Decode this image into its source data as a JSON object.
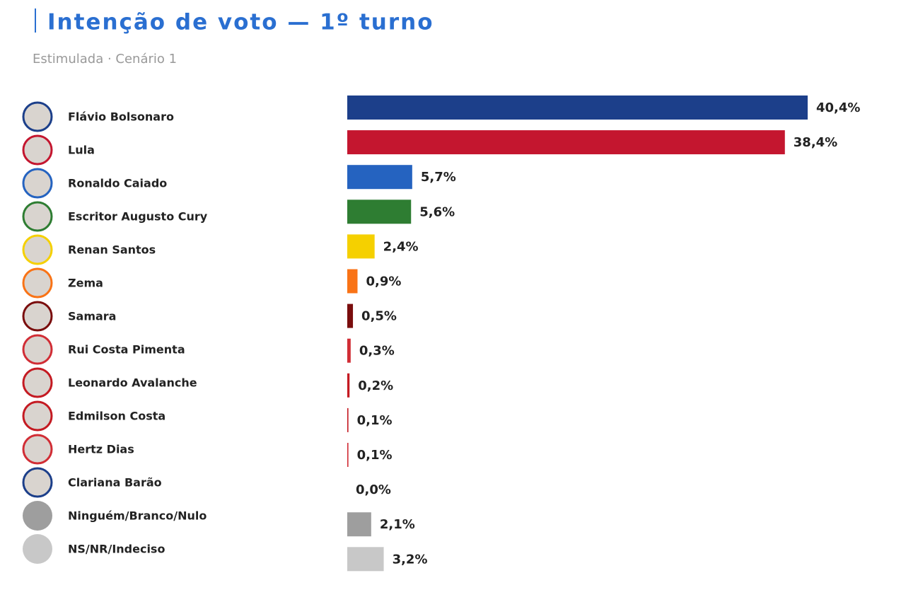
{
  "chart_data": {
    "type": "bar",
    "orientation": "horizontal",
    "title": "Intenção de voto — 1º turno",
    "subtitle": "Estimulada · Cenário 1",
    "categories": [
      "Flávio Bolsonaro",
      "Lula",
      "Ronaldo Caiado",
      "Escritor Augusto Cury",
      "Renan Santos",
      "Zema",
      "Samara",
      "Rui Costa Pimenta",
      "Leonardo Avalanche",
      "Edmilson Costa",
      "Hertz Dias",
      "Clariana Barão",
      "Ninguém/Branco/Nulo",
      "NS/NR/Indeciso"
    ],
    "values": [
      40.4,
      38.4,
      5.7,
      5.6,
      2.4,
      0.9,
      0.5,
      0.3,
      0.2,
      0.1,
      0.1,
      0.0,
      2.1,
      3.2
    ],
    "value_labels": [
      "40,4%",
      "38,4%",
      "5,7%",
      "5,6%",
      "2,4%",
      "0,9%",
      "0,5%",
      "0,3%",
      "0,2%",
      "0,1%",
      "0,1%",
      "0,0%",
      "2,1%",
      "3,2%"
    ],
    "colors": [
      "#1c3f8a",
      "#c4162f",
      "#2563c0",
      "#2e7d32",
      "#f5d000",
      "#f97316",
      "#7a0d0d",
      "#d12d35",
      "#c41a22",
      "#c41a22",
      "#d12d35",
      "#1c3f8a",
      "#9e9e9e",
      "#c8c8c8"
    ]
  }
}
